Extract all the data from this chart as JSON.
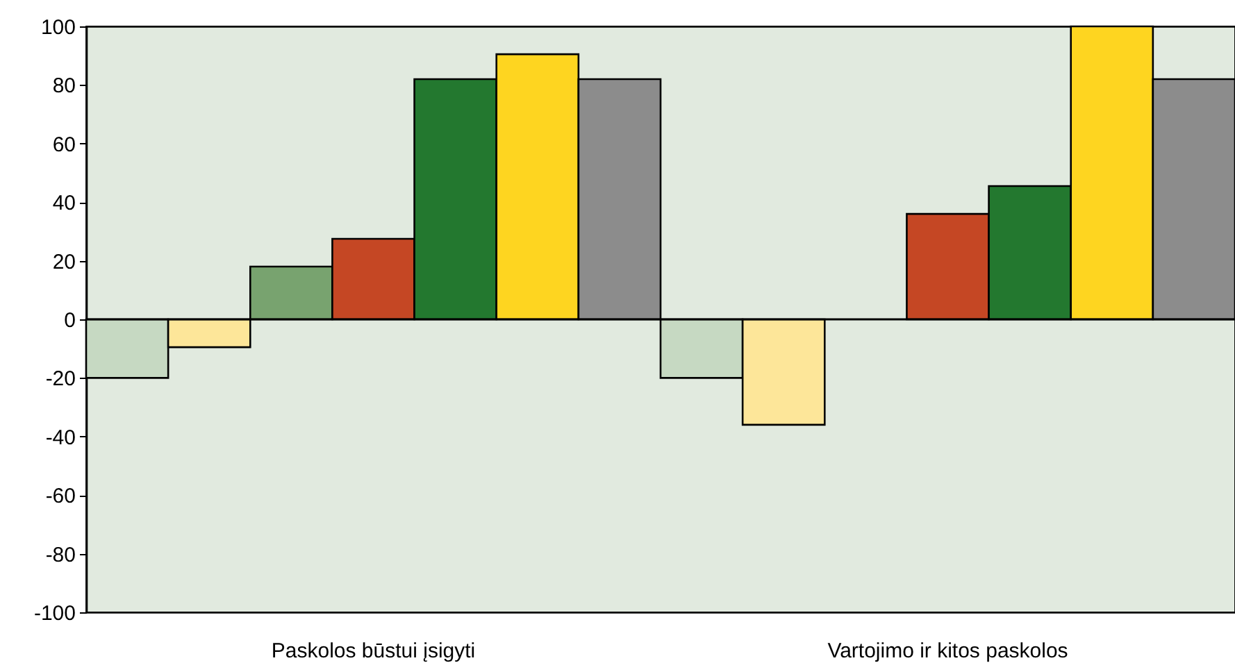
{
  "chart_data": {
    "type": "bar",
    "categories": [
      "Paskolos būstui įsigyti",
      "Vartojimo ir kitos paskolos"
    ],
    "series": [
      {
        "color": "#c6d9c2",
        "values": [
          -20,
          -20
        ]
      },
      {
        "color": "#fde699",
        "values": [
          -9.5,
          -36
        ]
      },
      {
        "color": "#78a36f",
        "values": [
          18,
          0
        ]
      },
      {
        "color": "#c54724",
        "values": [
          27.5,
          36
        ]
      },
      {
        "color": "#23782f",
        "values": [
          82,
          45.5
        ]
      },
      {
        "color": "#fed520",
        "values": [
          90.5,
          100
        ]
      },
      {
        "color": "#8c8c8c",
        "values": [
          82,
          82
        ]
      }
    ],
    "ylim": [
      -100,
      100
    ],
    "yticks": [
      -100,
      -80,
      -60,
      -40,
      -20,
      0,
      20,
      40,
      60,
      80,
      100
    ],
    "grid": false,
    "ref_lines": [
      {
        "axis": "y",
        "value": 0
      }
    ]
  }
}
